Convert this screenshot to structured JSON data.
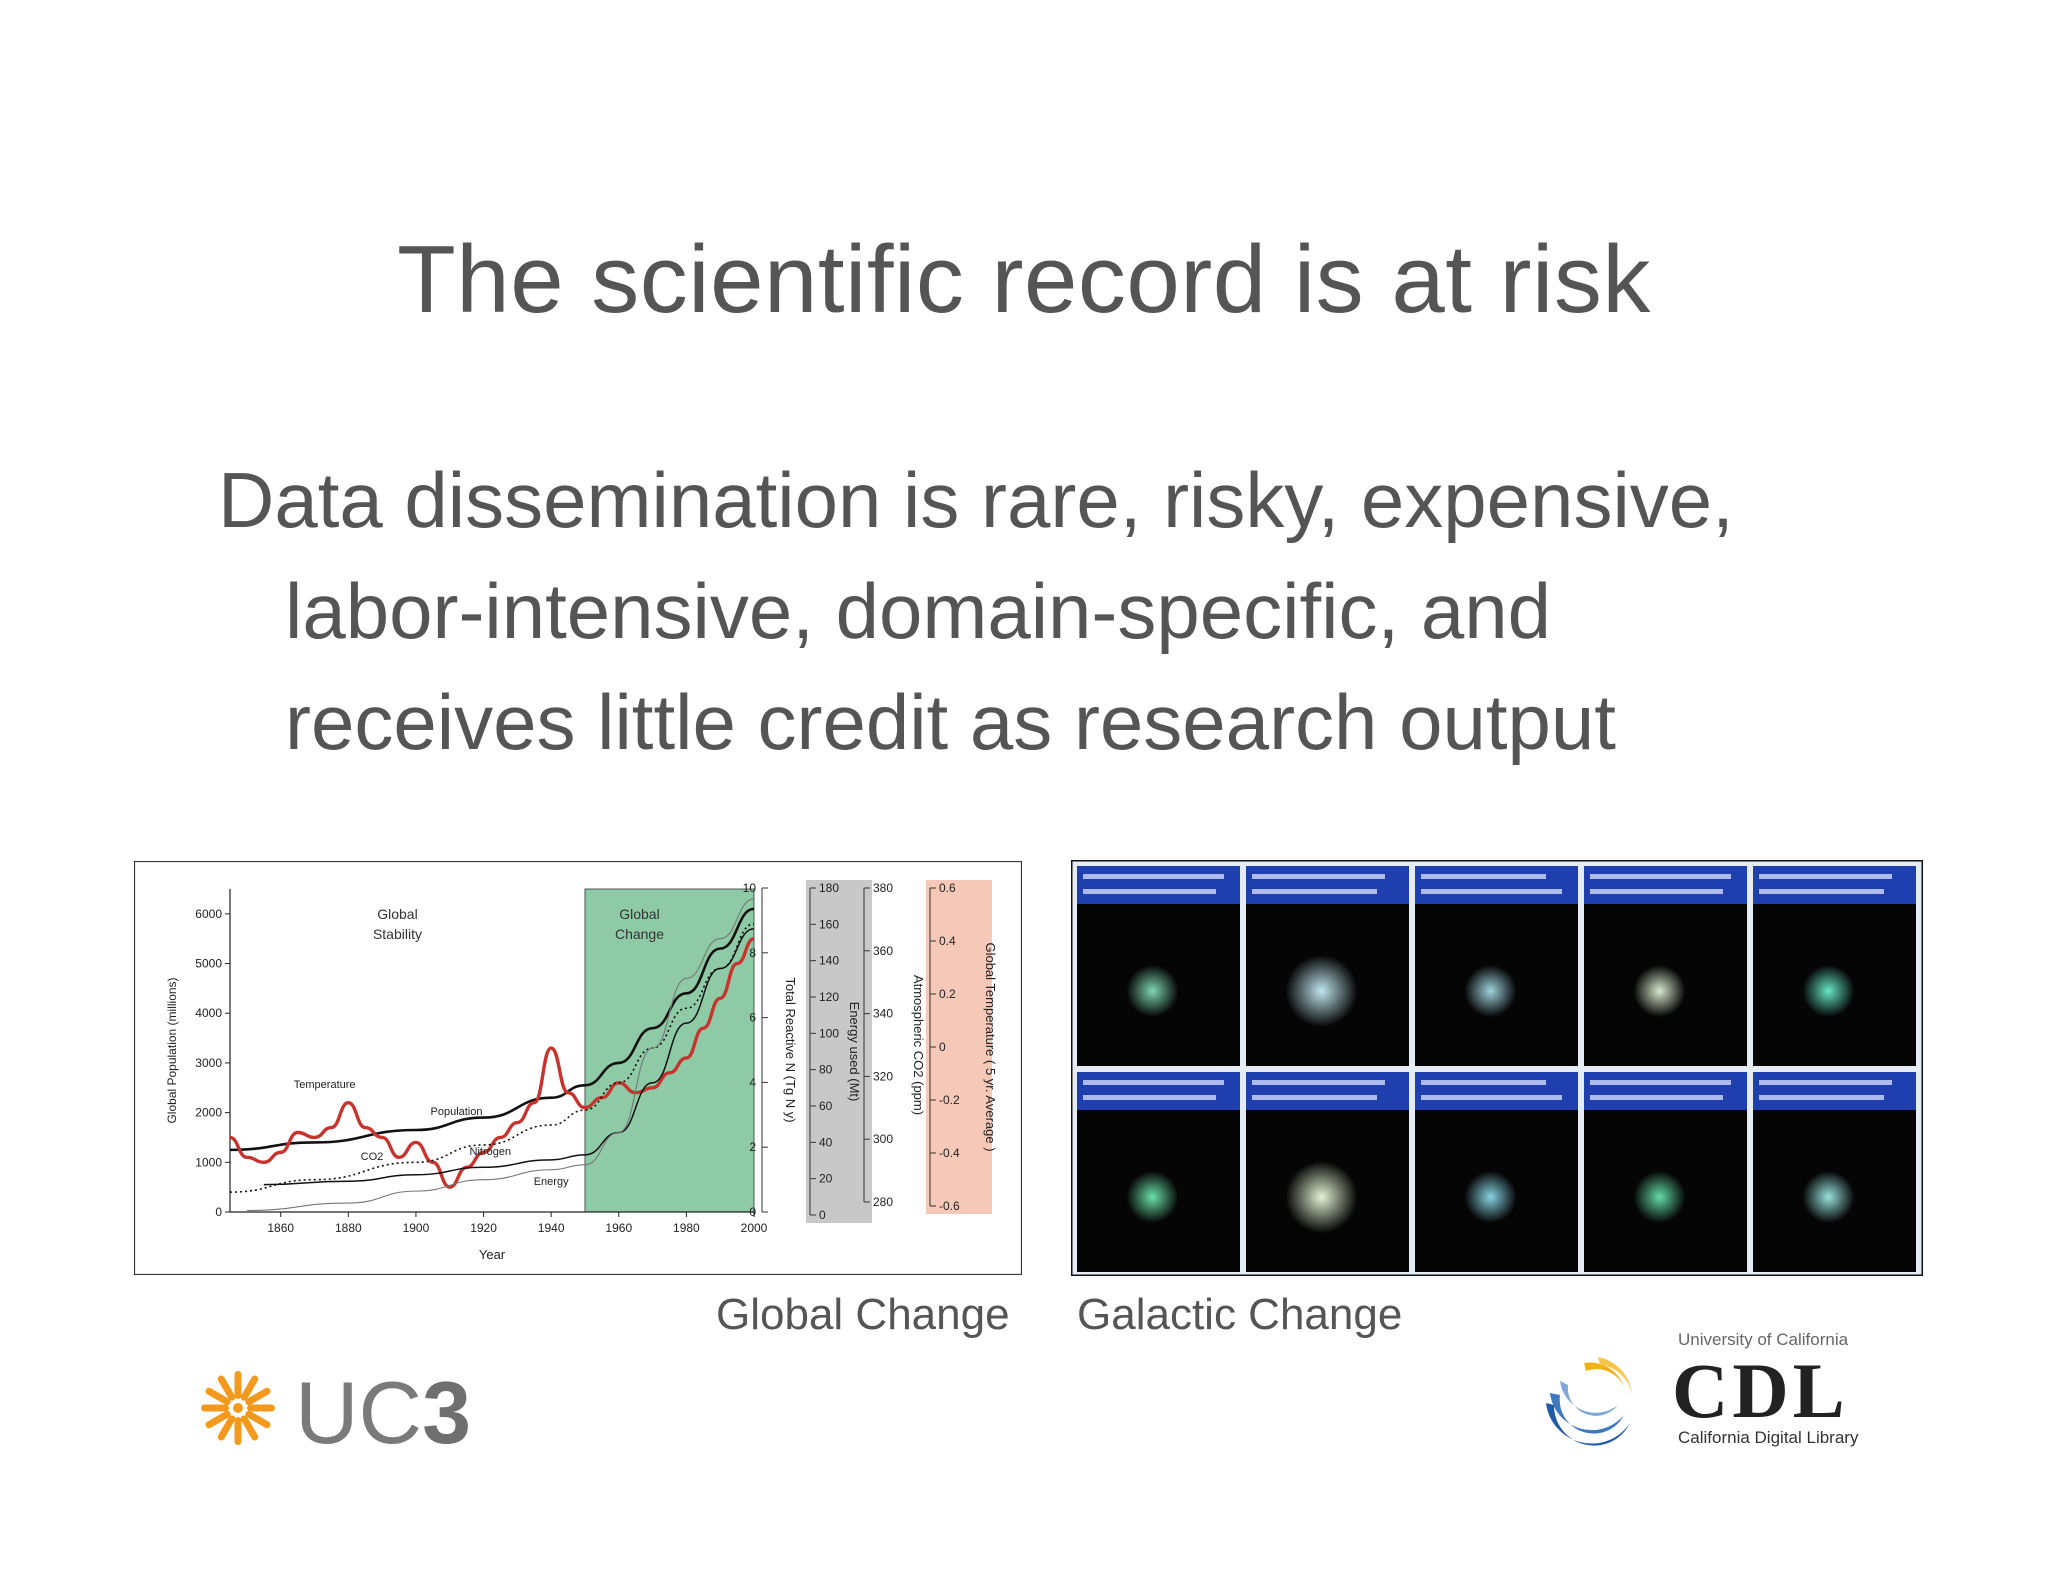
{
  "slide": {
    "title": "The scientific record is at risk",
    "body_lines": [
      "Data dissemination is rare, risky, expensive,",
      "labor-intensive, domain-specific, and",
      "receives little credit as research output"
    ],
    "caption_left": "Global Change",
    "caption_right": "Galactic Change"
  },
  "logos": {
    "uc3": {
      "text": "UC3",
      "accent_color": "#f39a1e",
      "text_color": "#7a7a7a"
    },
    "cdl": {
      "top_text": "University of California",
      "letters": "CDL",
      "bottom_text": "California Digital Library",
      "colors": [
        "#1f5aa6",
        "#f2b21a",
        "#222222"
      ]
    }
  },
  "chart_data": {
    "type": "line",
    "xlabel": "Year",
    "ylabel": "Global Population (millions)",
    "xlim": [
      1845,
      2000
    ],
    "ylim": [
      0,
      6500
    ],
    "x_ticks": [
      "1860",
      "1880",
      "1900",
      "1920",
      "1940",
      "1960",
      "1980",
      "2000"
    ],
    "y_ticks": [
      "0",
      "1000",
      "2000",
      "3000",
      "4000",
      "5000",
      "6000"
    ],
    "regions": [
      {
        "label_lines": [
          "Global",
          "Stability"
        ],
        "x_range": [
          1845,
          1950
        ]
      },
      {
        "label_lines": [
          "Global",
          "Change"
        ],
        "x_range": [
          1950,
          2000
        ],
        "color": "#8fcaa6"
      }
    ],
    "right_axes": [
      {
        "label": "Total Reactive N (Tg N y)",
        "ticks": [
          "0",
          "2",
          "4",
          "6",
          "8",
          "10"
        ]
      },
      {
        "label": "Energy used (Mt)",
        "ticks": [
          "0",
          "20",
          "40",
          "60",
          "80",
          "100",
          "120",
          "140",
          "160",
          "180"
        ],
        "color": "#c8c8c8"
      },
      {
        "label": "Atmospheric CO2 (ppm)",
        "ticks": [
          "280",
          "300",
          "320",
          "340",
          "360",
          "380"
        ]
      },
      {
        "label": "Global Temperature ( 5 yr. Average )",
        "ticks": [
          "-0.6",
          "-0.4",
          "-0.2",
          "0",
          "0.2",
          "0.4",
          "0.6"
        ],
        "color": "#f6c8b7"
      }
    ],
    "series": [
      {
        "name": "Population",
        "color": "#111111",
        "x": [
          1845,
          1870,
          1900,
          1920,
          1940,
          1950,
          1960,
          1970,
          1980,
          1990,
          2000
        ],
        "values": [
          1250,
          1400,
          1650,
          1900,
          2300,
          2550,
          3000,
          3700,
          4400,
          5300,
          6100
        ]
      },
      {
        "name": "Temperature",
        "color": "#c8332d",
        "x": [
          1845,
          1850,
          1855,
          1860,
          1865,
          1870,
          1875,
          1880,
          1885,
          1890,
          1895,
          1900,
          1905,
          1910,
          1915,
          1920,
          1925,
          1930,
          1935,
          1940,
          1945,
          1950,
          1955,
          1960,
          1965,
          1970,
          1975,
          1980,
          1985,
          1990,
          1995,
          2000
        ],
        "values": [
          1500,
          1100,
          1000,
          1200,
          1600,
          1500,
          1700,
          2200,
          1700,
          1500,
          1100,
          1400,
          1000,
          500,
          900,
          1200,
          1500,
          1800,
          2200,
          3300,
          2400,
          2100,
          2300,
          2600,
          2400,
          2500,
          2800,
          3100,
          3700,
          4300,
          5000,
          5500
        ]
      },
      {
        "name": "CO2",
        "color": "#111111",
        "x": [
          1845,
          1870,
          1900,
          1920,
          1940,
          1950,
          1960,
          1970,
          1980,
          1990,
          2000
        ],
        "values": [
          400,
          650,
          1000,
          1350,
          1750,
          2050,
          2600,
          3300,
          4100,
          4900,
          5800
        ]
      },
      {
        "name": "Nitrogen",
        "color": "#111111",
        "x": [
          1855,
          1880,
          1900,
          1920,
          1940,
          1950,
          1960,
          1970,
          1980,
          1990,
          2000
        ],
        "values": [
          550,
          620,
          750,
          900,
          1050,
          1150,
          1600,
          2600,
          3800,
          4900,
          5700
        ]
      },
      {
        "name": "Energy",
        "color": "#777777",
        "x": [
          1850,
          1880,
          1900,
          1920,
          1940,
          1950,
          1960,
          1970,
          1980,
          1990,
          2000
        ],
        "values": [
          30,
          180,
          420,
          650,
          850,
          950,
          1600,
          3300,
          4700,
          5500,
          6300
        ]
      }
    ]
  },
  "galaxy_grid": {
    "rows": 2,
    "cols": 5,
    "header_color": "#1f3fae",
    "spot_colors": [
      "#7ed6b4",
      "#bfe6ee",
      "#9fd3df",
      "#d7e9cd",
      "#66e6c2",
      "#6be0aa",
      "#e4f4d4",
      "#86d3e2",
      "#64dba8",
      "#97e3dd"
    ]
  }
}
